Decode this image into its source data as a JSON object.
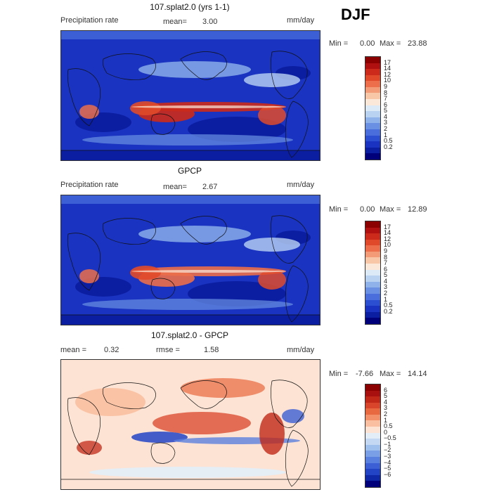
{
  "season": "DJF",
  "panels": [
    {
      "title": "107.splat2.0 (yrs 1-1)",
      "variable": "Precipitation rate",
      "mean_label": "mean=",
      "mean_value": "3.00",
      "units": "mm/day",
      "min_label": "Min =",
      "min_value": "0.00",
      "max_label": "Max =",
      "max_value": "23.88",
      "colorbar_ticks": [
        "17",
        "14",
        "12",
        "10",
        "9",
        "8",
        "7",
        "6",
        "5",
        "4",
        "3",
        "2",
        "1",
        "0.5",
        "0.2"
      ],
      "colorbar_colors": [
        "#8b0000",
        "#b01010",
        "#cc2a1a",
        "#e04a2a",
        "#ec6e4a",
        "#f39a76",
        "#f8c7a8",
        "#fbe8d8",
        "#dce9f7",
        "#b9d2f2",
        "#8fb2eb",
        "#6a90e3",
        "#4a6fdc",
        "#2c4ed0",
        "#1a33c0",
        "#0b1ea2",
        "#00007a"
      ]
    },
    {
      "title": "GPCP",
      "variable": "Precipitation rate",
      "mean_label": "mean=",
      "mean_value": "2.67",
      "units": "mm/day",
      "min_label": "Min =",
      "min_value": "0.00",
      "max_label": "Max =",
      "max_value": "12.89",
      "colorbar_ticks": [
        "17",
        "14",
        "12",
        "10",
        "9",
        "8",
        "7",
        "6",
        "5",
        "4",
        "3",
        "2",
        "1",
        "0.5",
        "0.2"
      ],
      "colorbar_colors": [
        "#8b0000",
        "#b01010",
        "#cc2a1a",
        "#e04a2a",
        "#ec6e4a",
        "#f39a76",
        "#f8c7a8",
        "#fbe8d8",
        "#dce9f7",
        "#b9d2f2",
        "#8fb2eb",
        "#6a90e3",
        "#4a6fdc",
        "#2c4ed0",
        "#1a33c0",
        "#0b1ea2",
        "#00007a"
      ]
    },
    {
      "title": "107.splat2.0 - GPCP",
      "mean_label": "mean =",
      "mean_value": "0.32",
      "rmse_label": "rmse =",
      "rmse_value": "1.58",
      "units": "mm/day",
      "min_label": "Min =",
      "min_value": "-7.66",
      "max_label": "Max =",
      "max_value": "14.14",
      "colorbar_ticks": [
        "6",
        "5",
        "4",
        "3",
        "2",
        "1",
        "0.5",
        "0",
        "−0.5",
        "−1",
        "−2",
        "−3",
        "−4",
        "−5",
        "−6"
      ],
      "colorbar_colors": [
        "#8b0000",
        "#a81010",
        "#c22818",
        "#d8452a",
        "#e8683f",
        "#f3906a",
        "#f9bfa0",
        "#fde3d3",
        "#e2edf8",
        "#c4d8f3",
        "#9fbfed",
        "#7a9fe6",
        "#5a80df",
        "#3c5fd5",
        "#2344c4",
        "#0f28a8",
        "#00007a"
      ]
    }
  ]
}
